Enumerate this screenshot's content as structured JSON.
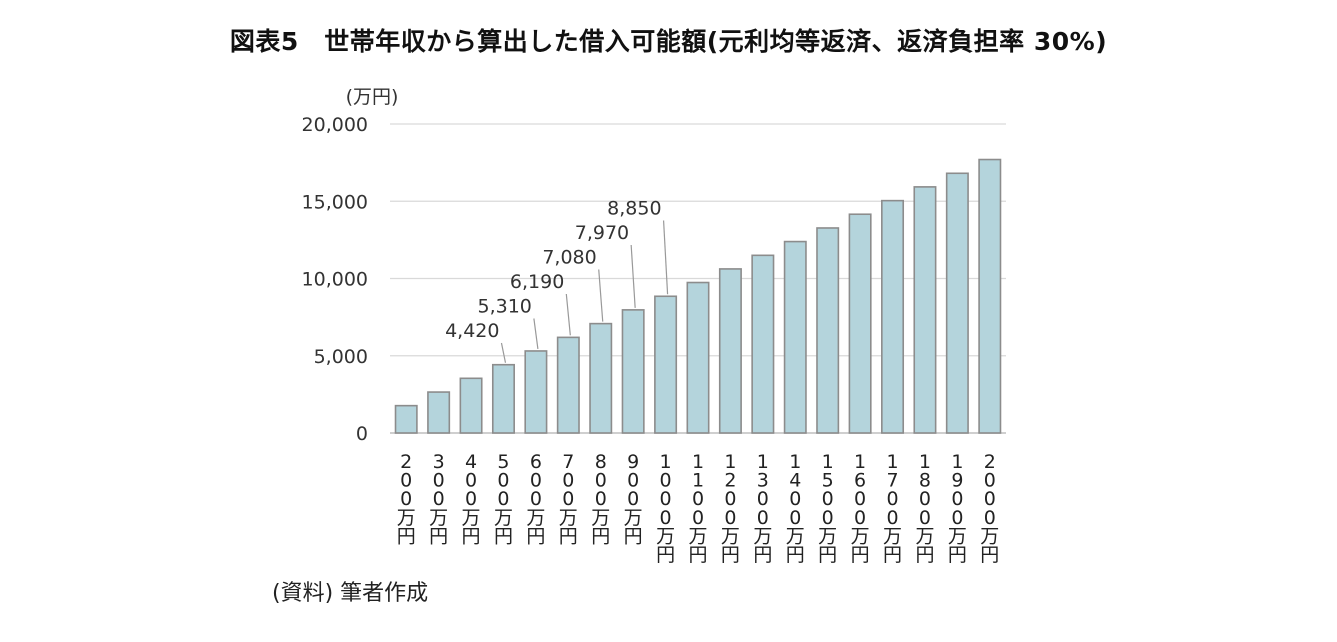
{
  "title": "図表5　世帯年収から算出した借入可能額(元利均等返済、返済負担率 30%)",
  "source": "(資料) 筆者作成",
  "colors": {
    "bar_fill": "#b4d4dc",
    "bar_stroke": "#8c8c8c",
    "grid": "#d9d9d9"
  },
  "chart_data": {
    "type": "bar",
    "title": "図表5　世帯年収から算出した借入可能額(元利均等返済、返済負担率 30%)",
    "ylabel": "(万円)",
    "xlabel": "",
    "ylim": [
      0,
      20000
    ],
    "yticks": [
      0,
      5000,
      10000,
      15000,
      20000
    ],
    "ytick_labels": [
      "0",
      "5,000",
      "10,000",
      "15,000",
      "20,000"
    ],
    "grid": true,
    "legend": "none",
    "categories": [
      "200万円",
      "300万円",
      "400万円",
      "500万円",
      "600万円",
      "700万円",
      "800万円",
      "900万円",
      "1000万円",
      "1100万円",
      "1200万円",
      "1300万円",
      "1400万円",
      "1500万円",
      "1600万円",
      "1700万円",
      "1800万円",
      "1900万円",
      "2000万円"
    ],
    "values": [
      1770,
      2650,
      3540,
      4420,
      5310,
      6190,
      7080,
      7970,
      8850,
      9740,
      10620,
      11500,
      12390,
      13270,
      14160,
      15040,
      15930,
      16810,
      17700
    ],
    "data_labels": [
      {
        "index": 3,
        "text": "4,420"
      },
      {
        "index": 4,
        "text": "5,310"
      },
      {
        "index": 5,
        "text": "6,190"
      },
      {
        "index": 6,
        "text": "7,080"
      },
      {
        "index": 7,
        "text": "7,970"
      },
      {
        "index": 8,
        "text": "8,850"
      }
    ]
  }
}
